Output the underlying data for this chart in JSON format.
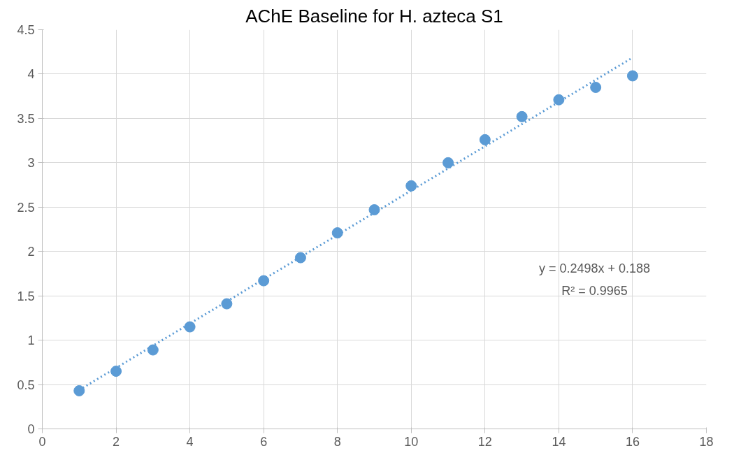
{
  "chart_data": {
    "type": "scatter",
    "title": "AChE Baseline for H. azteca S1",
    "x": [
      1,
      2,
      3,
      4,
      5,
      6,
      7,
      8,
      9,
      10,
      11,
      12,
      13,
      14,
      15,
      16
    ],
    "series": [
      {
        "color": "#5b9bd5",
        "marker": "circle",
        "values": [
          0.43,
          0.65,
          0.89,
          1.15,
          1.41,
          1.67,
          1.93,
          2.21,
          2.47,
          2.74,
          3.0,
          3.26,
          3.52,
          3.71,
          3.85,
          3.98
        ]
      },
      {
        "type": "line",
        "color": "#5b9bd5",
        "line_style": "dotted",
        "x": [
          1,
          16
        ],
        "values": [
          0.438,
          4.185
        ]
      }
    ],
    "annotations": [
      "y = 0.2498x + 0.188",
      "R² = 0.9965"
    ],
    "xlim": [
      0,
      18
    ],
    "xticks": [
      0,
      2,
      4,
      6,
      8,
      10,
      12,
      14,
      16,
      18
    ],
    "ylim": [
      0,
      4.5
    ],
    "yticks": [
      0,
      0.5,
      1,
      1.5,
      2,
      2.5,
      3,
      3.5,
      4,
      4.5
    ],
    "grid": true
  }
}
